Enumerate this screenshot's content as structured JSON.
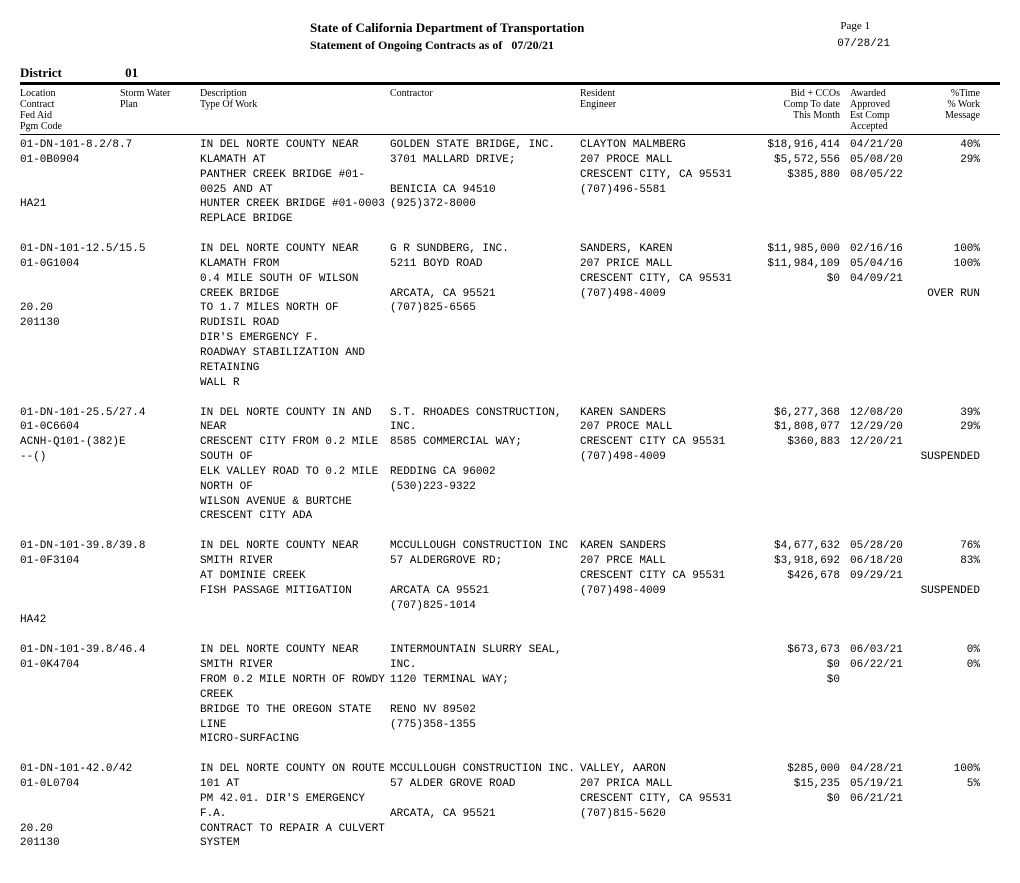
{
  "header": {
    "title": "State of California Department of Transportation",
    "subtitle_prefix": "Statement of Ongoing Contracts as of",
    "asof_date": "07/20/21",
    "page_label": "Page 1",
    "print_date": "07/28/21"
  },
  "district": {
    "label": "District",
    "number": "01"
  },
  "col_headers": {
    "c1": "Location\nContract\nFed Aid\nPgm Code",
    "c2": "Storm Water\nPlan",
    "c3": "Description\nType Of Work",
    "c4": "Contractor",
    "c5": "Resident\nEngineer",
    "c6": "Bid + CCOs\nComp To date\nThis Month",
    "c7": "Awarded\nApproved\nEst Comp\nAccepted",
    "c8": "%Time\n% Work\nMessage"
  },
  "contracts": [
    {
      "loc": [
        "01-DN-101-8.2/8.7",
        "01-0B0904",
        "",
        "",
        "HA21"
      ],
      "desc": [
        "IN DEL NORTE COUNTY NEAR KLAMATH AT",
        "PANTHER CREEK BRIDGE #01-0025 AND AT",
        "HUNTER CREEK BRIDGE #01-0003",
        "REPLACE BRIDGE"
      ],
      "contractor": [
        "GOLDEN STATE BRIDGE, INC.",
        "3701 MALLARD DRIVE;",
        "",
        "BENICIA CA 94510",
        "(925)372-8000"
      ],
      "engineer": [
        "CLAYTON MALMBERG",
        "207 PROCE MALL",
        "CRESCENT CITY, CA 95531",
        "(707)496-5581"
      ],
      "money": [
        "$18,916,414",
        "$5,572,556",
        "$385,880"
      ],
      "dates": [
        "04/21/20",
        "05/08/20",
        "08/05/22"
      ],
      "pct": [
        "40%",
        "29%"
      ]
    },
    {
      "loc": [
        "01-DN-101-12.5/15.5",
        "01-0G1004",
        "",
        "",
        "20.20",
        "201130"
      ],
      "desc": [
        "IN DEL NORTE COUNTY NEAR KLAMATH FROM",
        "0.4 MILE SOUTH OF WILSON CREEK BRIDGE",
        "TO 1.7 MILES NORTH OF RUDISIL ROAD",
        "DIR'S EMERGENCY F.",
        "ROADWAY STABILIZATION AND RETAINING",
        "WALL R"
      ],
      "contractor": [
        "G R SUNDBERG, INC.",
        "5211 BOYD ROAD",
        "",
        "ARCATA, CA 95521",
        "(707)825-6565"
      ],
      "engineer": [
        "SANDERS, KAREN",
        "207 PRICE MALL",
        "CRESCENT CITY, CA 95531",
        "(707)498-4009"
      ],
      "money": [
        "$11,985,000",
        "$11,984,109",
        "$0"
      ],
      "dates": [
        "02/16/16",
        "05/04/16",
        "04/09/21"
      ],
      "pct": [
        "100%",
        "100%",
        "",
        "OVER RUN"
      ]
    },
    {
      "loc": [
        "01-DN-101-25.5/27.4",
        "01-0C6604",
        "ACNH-Q101-(382)E",
        "--()"
      ],
      "desc": [
        "IN DEL NORTE COUNTY IN AND NEAR",
        "CRESCENT CITY FROM 0.2 MILE SOUTH OF",
        "ELK VALLEY ROAD TO 0.2 MILE NORTH OF",
        "WILSON AVENUE & BURTCHE",
        "CRESCENT CITY ADA"
      ],
      "contractor": [
        "S.T. RHOADES CONSTRUCTION,",
        "INC.",
        "8585 COMMERCIAL WAY;",
        "",
        "REDDING CA 96002",
        "(530)223-9322"
      ],
      "engineer": [
        "KAREN SANDERS",
        "207 PROCE MALL",
        "CRESCENT CITY CA 95531",
        "(707)498-4009"
      ],
      "money": [
        "$6,277,368",
        "$1,808,077",
        "$360,883"
      ],
      "dates": [
        "12/08/20",
        "12/29/20",
        "12/20/21"
      ],
      "pct": [
        "39%",
        "29%",
        "",
        "SUSPENDED"
      ]
    },
    {
      "loc": [
        "01-DN-101-39.8/39.8",
        "01-0F3104",
        "",
        "",
        "",
        "HA42"
      ],
      "desc": [
        "IN DEL NORTE COUNTY NEAR SMITH RIVER",
        "AT DOMINIE CREEK",
        "FISH PASSAGE MITIGATION"
      ],
      "contractor": [
        "MCCULLOUGH CONSTRUCTION INC",
        "57 ALDERGROVE RD;",
        "",
        "ARCATA CA 95521",
        "(707)825-1014"
      ],
      "engineer": [
        "KAREN SANDERS",
        "207 PRCE MALL",
        "CRESCENT CITY CA 95531",
        "(707)498-4009"
      ],
      "money": [
        "$4,677,632",
        "$3,918,692",
        "$426,678"
      ],
      "dates": [
        "05/28/20",
        "06/18/20",
        "09/29/21"
      ],
      "pct": [
        "76%",
        "83%",
        "",
        "SUSPENDED"
      ]
    },
    {
      "loc": [
        "01-DN-101-39.8/46.4",
        "01-0K4704"
      ],
      "desc": [
        "IN DEL NORTE COUNTY NEAR SMITH RIVER",
        "FROM 0.2 MILE NORTH OF ROWDY CREEK",
        "BRIDGE TO THE OREGON STATE LINE",
        "MICRO-SURFACING"
      ],
      "contractor": [
        "INTERMOUNTAIN SLURRY SEAL,",
        "INC.",
        "1120 TERMINAL WAY;",
        "",
        "RENO NV 89502",
        "(775)358-1355"
      ],
      "engineer": [
        ""
      ],
      "money": [
        "$673,673",
        "$0",
        "$0"
      ],
      "dates": [
        "06/03/21",
        "06/22/21",
        ""
      ],
      "pct": [
        "0%",
        "0%"
      ]
    },
    {
      "loc": [
        "01-DN-101-42.0/42",
        "01-0L0704",
        "",
        "",
        "20.20",
        "201130"
      ],
      "desc": [
        "IN DEL NORTE  COUNTY ON ROUTE  101 AT",
        "PM 42.01.  DIR'S EMERGENCY F.A.",
        "CONTRACT TO REPAIR A CULVERT SYSTEM"
      ],
      "contractor": [
        "MCCULLOUGH CONSTRUCTION INC.",
        "57 ALDER GROVE ROAD",
        "",
        "ARCATA, CA 95521"
      ],
      "engineer": [
        "VALLEY, AARON",
        "207 PRICA MALL",
        "CRESCENT CITY, CA 95531",
        "(707)815-5620"
      ],
      "money": [
        "$285,000",
        "$15,235",
        "$0"
      ],
      "dates": [
        "04/28/21",
        "05/19/21",
        "06/21/21"
      ],
      "pct": [
        "100%",
        "5%"
      ]
    }
  ]
}
